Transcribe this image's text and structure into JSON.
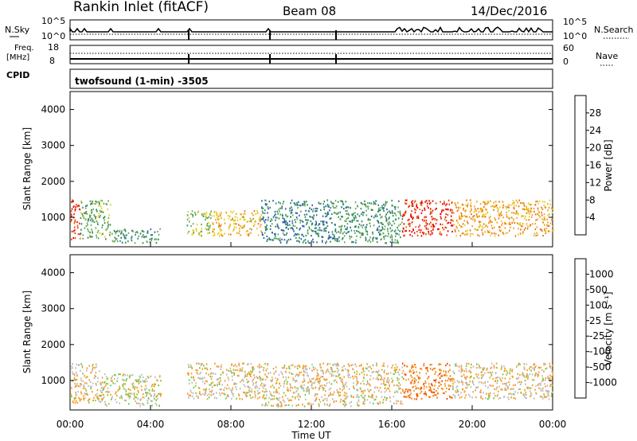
{
  "header": {
    "station": "Rankin Inlet (fitACF)",
    "beam": "Beam 08",
    "date": "14/Dec/2016"
  },
  "top_panels": {
    "nsky_label": "N.Sky",
    "nsky_ticks": [
      "10^5",
      "10^0"
    ],
    "nsearch_label": "N.Search",
    "nsearch_ticks": [
      "10^5",
      "10^0"
    ],
    "freq_label_1": "Freq.",
    "freq_label_2": "[MHz]",
    "freq_ticks": [
      "18",
      "8"
    ],
    "nave_label": "Nave",
    "nave_ticks": [
      "60",
      "0"
    ],
    "cpid_label": "CPID",
    "cpid_text": "twofsound (1-min) -3505"
  },
  "colors": {
    "power_scale": [
      "#1a1ae6",
      "#2b5fa8",
      "#2e8b57",
      "#66aa55",
      "#e6d020",
      "#f0a020",
      "#e87010",
      "#e84010",
      "#e60000"
    ],
    "velocity_scale": [
      "#ee0000",
      "#ee4400",
      "#f07a10",
      "#f59a20",
      "#bbbbbb",
      "#66cc33",
      "#2e8b57",
      "#2b6fa8",
      "#2040c0"
    ]
  },
  "chart_data": [
    {
      "type": "heatmap",
      "name": "power",
      "ylabel": "Slant Range [km]",
      "yticks": [
        "4000",
        "3000",
        "2000",
        "1000"
      ],
      "ylim": [
        180,
        4500
      ],
      "xlim": [
        0,
        24
      ],
      "colorbar_label": "Power [dB]",
      "colorbar_ticks": [
        "28",
        "24",
        "20",
        "16",
        "12",
        "8",
        "4"
      ],
      "clim": [
        0,
        32
      ],
      "regions": [
        {
          "x": [
            0.0,
            0.5
          ],
          "y": [
            400,
            1500
          ],
          "level": 28
        },
        {
          "x": [
            0.5,
            2.0
          ],
          "y": [
            400,
            1500
          ],
          "level": 12
        },
        {
          "x": [
            2.0,
            4.5
          ],
          "y": [
            300,
            700
          ],
          "level": 10
        },
        {
          "x": [
            5.8,
            7.0
          ],
          "y": [
            500,
            1200
          ],
          "level": 14
        },
        {
          "x": [
            7.0,
            9.5
          ],
          "y": [
            500,
            1200
          ],
          "level": 18
        },
        {
          "x": [
            9.5,
            13.0
          ],
          "y": [
            300,
            1500
          ],
          "level": 8
        },
        {
          "x": [
            13.0,
            16.5
          ],
          "y": [
            300,
            1500
          ],
          "level": 10
        },
        {
          "x": [
            16.5,
            19.0
          ],
          "y": [
            500,
            1500
          ],
          "level": 28
        },
        {
          "x": [
            19.0,
            24.0
          ],
          "y": [
            500,
            1500
          ],
          "level": 20
        }
      ]
    },
    {
      "type": "heatmap",
      "name": "velocity",
      "ylabel": "Slant Range [km]",
      "yticks": [
        "4000",
        "3000",
        "2000",
        "1000"
      ],
      "ylim": [
        180,
        4500
      ],
      "xlim": [
        0,
        24
      ],
      "xticks": [
        "00:00",
        "04:00",
        "08:00",
        "12:00",
        "16:00",
        "20:00",
        "00:00"
      ],
      "xlabel": "Time UT",
      "colorbar_label": "Velocity [m s⁻¹]",
      "colorbar_ticks": [
        "1000",
        "500",
        "100",
        "25",
        "-25",
        "-100",
        "-500",
        "-1000"
      ],
      "clim": [
        -1200,
        1200
      ],
      "regions": [
        {
          "x": [
            0.0,
            1.5
          ],
          "y": [
            400,
            1500
          ],
          "level": -100
        },
        {
          "x": [
            1.5,
            4.5
          ],
          "y": [
            300,
            1200
          ],
          "level": 0
        },
        {
          "x": [
            5.8,
            9.5
          ],
          "y": [
            500,
            1500
          ],
          "level": -100
        },
        {
          "x": [
            9.5,
            16.5
          ],
          "y": [
            300,
            1500
          ],
          "level": -100
        },
        {
          "x": [
            16.5,
            19.0
          ],
          "y": [
            500,
            1500
          ],
          "level": -500
        },
        {
          "x": [
            19.0,
            24.0
          ],
          "y": [
            500,
            1500
          ],
          "level": -100
        }
      ]
    }
  ]
}
